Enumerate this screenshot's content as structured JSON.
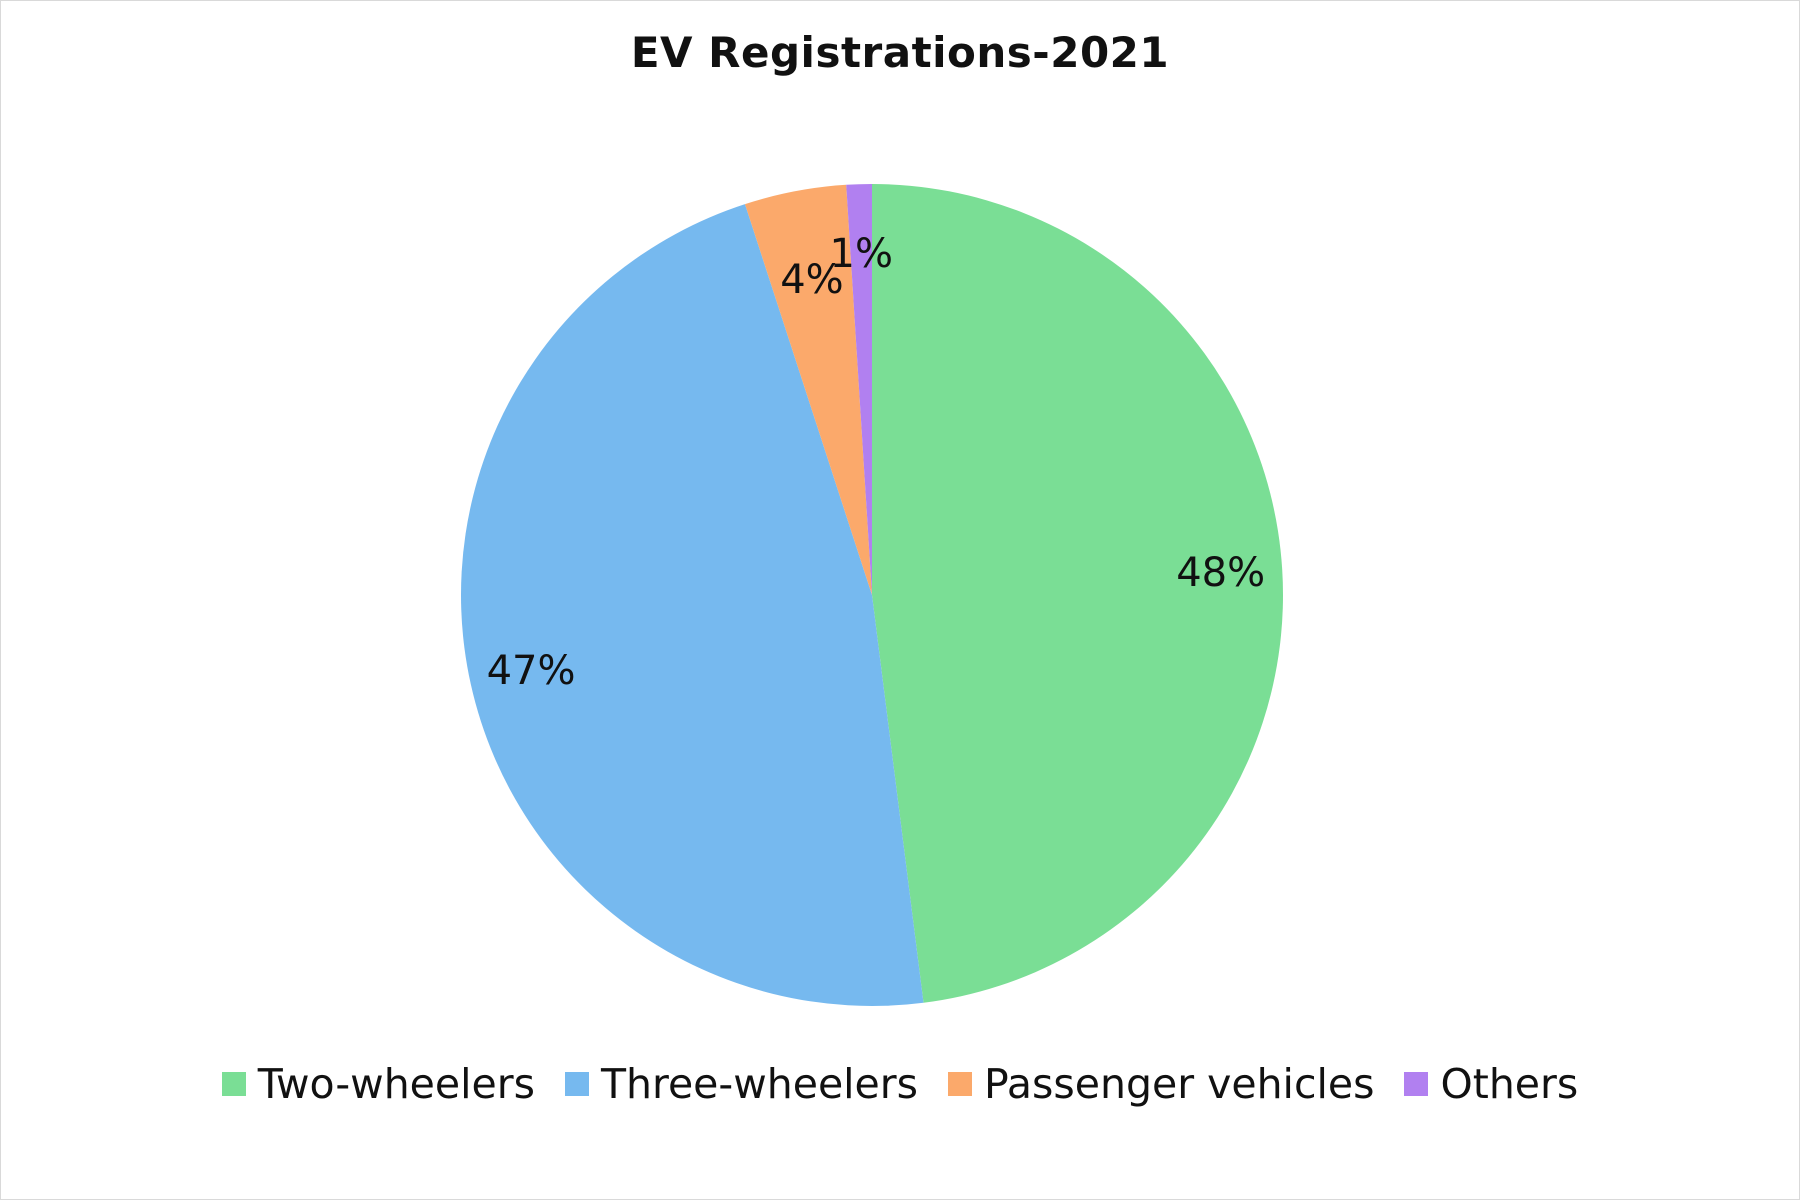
{
  "chart_data": {
    "type": "pie",
    "title": "EV Registrations-2021",
    "categories": [
      "Two-wheelers",
      "Three-wheelers",
      "Passenger vehicles",
      "Others"
    ],
    "values": [
      48,
      47,
      4,
      1
    ],
    "labels": [
      "48%",
      "47%",
      "4%",
      "1%"
    ],
    "colors": [
      "#7ade95",
      "#76b9ef",
      "#fba96b",
      "#b180f0"
    ],
    "start_angle_deg": 0,
    "direction": "clockwise",
    "legend_position": "bottom"
  }
}
